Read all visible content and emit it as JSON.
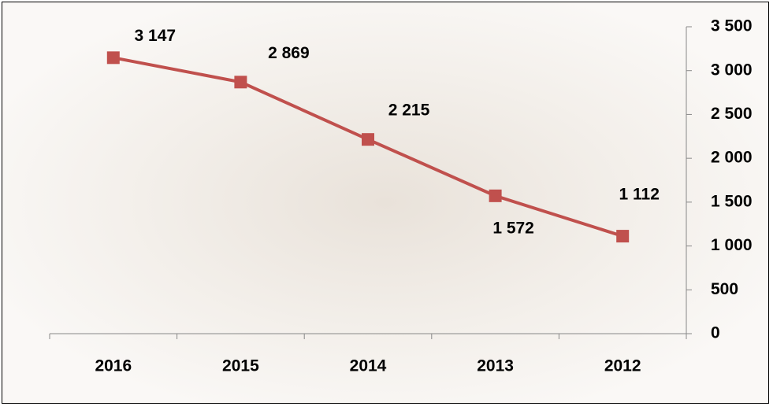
{
  "chart_data": {
    "type": "line",
    "categories": [
      "2016",
      "2015",
      "2014",
      "2013",
      "2012"
    ],
    "series": [
      {
        "color": "#c0504d",
        "values": [
          3147,
          2869,
          2215,
          1572,
          1112
        ],
        "value_labels": [
          "3 147",
          "2 869",
          "2 215",
          "1 572",
          "1 112"
        ]
      }
    ],
    "ylim": [
      0,
      3500
    ],
    "yticks": [
      0,
      500,
      {
        "value": 1000,
        "label": "1 000"
      },
      {
        "value": 1500,
        "label": "1 500"
      },
      {
        "value": 2000,
        "label": "2 000"
      },
      {
        "value": 2500,
        "label": "2 500"
      },
      {
        "value": 3000,
        "label": "3 000"
      },
      {
        "value": 3500,
        "label": "3 500"
      }
    ],
    "y_axis_side": "right"
  }
}
